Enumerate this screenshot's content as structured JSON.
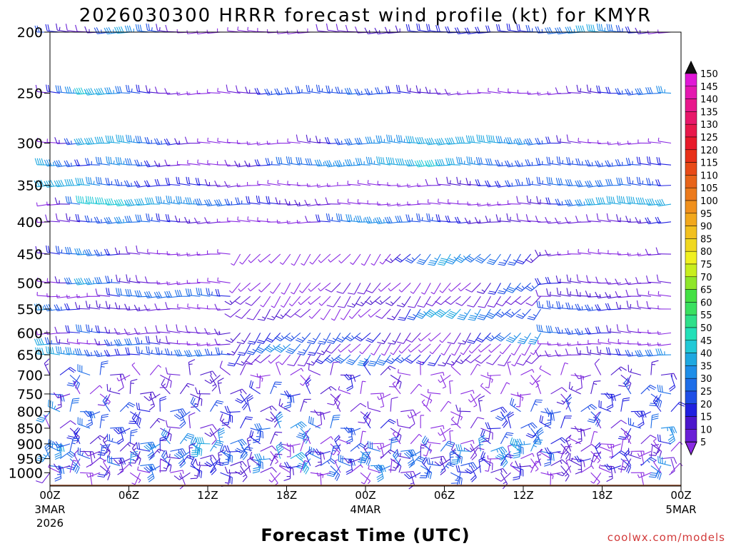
{
  "chart_data": {
    "type": "wind-barb-time-height",
    "title": "2026030300 HRRR forecast wind profile (kt) for KMYR",
    "xlabel": "Forecast Time (UTC)",
    "ylabel": "",
    "credit": "coolwx.com/models",
    "x_range_hours": [
      0,
      48
    ],
    "x_ticks": [
      {
        "hour": 0,
        "label": "00Z",
        "sub1": "3MAR",
        "sub2": "2026"
      },
      {
        "hour": 6,
        "label": "06Z",
        "sub1": "",
        "sub2": ""
      },
      {
        "hour": 12,
        "label": "12Z",
        "sub1": "",
        "sub2": ""
      },
      {
        "hour": 18,
        "label": "18Z",
        "sub1": "",
        "sub2": ""
      },
      {
        "hour": 24,
        "label": "00Z",
        "sub1": "4MAR",
        "sub2": ""
      },
      {
        "hour": 30,
        "label": "06Z",
        "sub1": "",
        "sub2": ""
      },
      {
        "hour": 36,
        "label": "12Z",
        "sub1": "",
        "sub2": ""
      },
      {
        "hour": 42,
        "label": "18Z",
        "sub1": "",
        "sub2": ""
      },
      {
        "hour": 48,
        "label": "00Z",
        "sub1": "5MAR",
        "sub2": ""
      }
    ],
    "y_scale": "log-pressure",
    "y_range_hpa": [
      1050,
      200
    ],
    "y_ticks": [
      "200",
      "250",
      "300",
      "350",
      "400",
      "450",
      "500",
      "550",
      "600",
      "650",
      "700",
      "750",
      "800",
      "850",
      "900",
      "950",
      "1000"
    ],
    "colorbar": {
      "labels": [
        "5",
        "10",
        "15",
        "20",
        "25",
        "30",
        "35",
        "40",
        "45",
        "50",
        "55",
        "60",
        "65",
        "70",
        "75",
        "80",
        "85",
        "90",
        "95",
        "100",
        "105",
        "110",
        "115",
        "120",
        "125",
        "130",
        "135",
        "140",
        "145",
        "150"
      ],
      "colors": [
        "#8a2be2",
        "#6a1fd6",
        "#4c17cc",
        "#2020e0",
        "#1f4fe6",
        "#1e6ee8",
        "#1e8ee8",
        "#1ea8e0",
        "#22c9d6",
        "#22e0b8",
        "#2ee08a",
        "#3ae060",
        "#44e044",
        "#8fe62a",
        "#c8ee1e",
        "#f0f020",
        "#f0d820",
        "#f2c01e",
        "#f2a81c",
        "#f0901c",
        "#ec7a1c",
        "#e8641a",
        "#e84a18",
        "#e83018",
        "#e81a2a",
        "#e8184a",
        "#e8186a",
        "#e8188c",
        "#e418b0",
        "#e018d6"
      ]
    },
    "levels": [
      {
        "p": 200,
        "shape": [
          [
            0,
            23.3
          ],
          [
            3,
            8.3
          ],
          [
            6,
            42.3
          ],
          [
            12,
            -5.4
          ],
          [
            18,
            3.9
          ],
          [
            24,
            11.9
          ],
          [
            30,
            20.0
          ],
          [
            36,
            18.1
          ],
          [
            42,
            41.1
          ],
          [
            48,
            -5.1
          ]
        ]
      },
      {
        "p": 250,
        "shape": [
          [
            0,
            12.4
          ],
          [
            3,
            44.5
          ],
          [
            6,
            31.7
          ],
          [
            12,
            -5.1
          ],
          [
            18,
            25.8
          ],
          [
            24,
            27.9
          ],
          [
            30,
            12.4
          ],
          [
            36,
            -7.5
          ],
          [
            42,
            17.5
          ],
          [
            48,
            35.2
          ]
        ]
      },
      {
        "p": 300,
        "shape": [
          [
            0,
            -7.6
          ],
          [
            3,
            38.3
          ],
          [
            6,
            39.1
          ],
          [
            12,
            7.6
          ],
          [
            18,
            -1.8
          ],
          [
            24,
            31.7
          ],
          [
            30,
            41.7
          ],
          [
            36,
            36.3
          ],
          [
            42,
            -0.1
          ],
          [
            48,
            -4.4
          ]
        ]
      },
      {
        "p": 325,
        "shape": [
          [
            0,
            40.0
          ],
          [
            3,
            19.5
          ],
          [
            6,
            37.5
          ],
          [
            12,
            -5.7
          ],
          [
            18,
            29.0
          ],
          [
            24,
            35.4
          ],
          [
            30,
            44.1
          ],
          [
            36,
            22.2
          ],
          [
            42,
            25.4
          ],
          [
            48,
            20.5
          ]
        ]
      },
      {
        "p": 350,
        "shape": [
          [
            0,
            39.3
          ],
          [
            3,
            37.9
          ],
          [
            6,
            23.7
          ],
          [
            12,
            18.8
          ],
          [
            18,
            -7.5
          ],
          [
            24,
            -8.4
          ],
          [
            30,
            10.1
          ],
          [
            36,
            23.9
          ],
          [
            42,
            31.5
          ],
          [
            48,
            20.6
          ]
        ]
      },
      {
        "p": 375,
        "shape": [
          [
            0,
            -8.7
          ],
          [
            3,
            42.8
          ],
          [
            6,
            42.9
          ],
          [
            12,
            31.8
          ],
          [
            18,
            17.5
          ],
          [
            24,
            5.0
          ],
          [
            30,
            -6.4
          ],
          [
            36,
            4.6
          ],
          [
            42,
            41.0
          ],
          [
            48,
            38.7
          ]
        ]
      },
      {
        "p": 400,
        "shape": [
          [
            0,
            3.9
          ],
          [
            3,
            19.1
          ],
          [
            6,
            33.6
          ],
          [
            12,
            11.8
          ],
          [
            18,
            -6.9
          ],
          [
            24,
            38.0
          ],
          [
            30,
            21.8
          ],
          [
            36,
            12.2
          ],
          [
            42,
            8.6
          ],
          [
            48,
            22.5
          ]
        ]
      },
      {
        "p": 450,
        "shape": [
          [
            0,
            13.9
          ],
          [
            3,
            33.7
          ],
          [
            6,
            13.8
          ],
          [
            12,
            -3.5
          ],
          [
            18,
            2.9
          ],
          [
            24,
            -8.5
          ],
          [
            30,
            38.9
          ],
          [
            36,
            23.5
          ],
          [
            42,
            -3.9
          ],
          [
            48,
            11.7
          ]
        ]
      },
      {
        "p": 500,
        "shape": [
          [
            0,
            -9.0
          ],
          [
            3,
            41.4
          ],
          [
            6,
            17.2
          ],
          [
            12,
            -5.9
          ],
          [
            18,
            -1.5
          ],
          [
            24,
            12.8
          ],
          [
            30,
            -4.3
          ],
          [
            36,
            28.7
          ],
          [
            42,
            9.6
          ],
          [
            48,
            9.2
          ]
        ]
      },
      {
        "p": 525,
        "shape": [
          [
            0,
            -2.2
          ],
          [
            3,
            -6.4
          ],
          [
            6,
            27.8
          ],
          [
            12,
            29.6
          ],
          [
            18,
            -3.0
          ],
          [
            24,
            14.0
          ],
          [
            30,
            11.6
          ],
          [
            36,
            9.7
          ],
          [
            42,
            17.4
          ],
          [
            48,
            2.4
          ]
        ]
      },
      {
        "p": 550,
        "shape": [
          [
            0,
            34.2
          ],
          [
            3,
            13.9
          ],
          [
            6,
            15.8
          ],
          [
            12,
            4.0
          ],
          [
            18,
            16.4
          ],
          [
            24,
            -6.7
          ],
          [
            30,
            42.1
          ],
          [
            36,
            24.0
          ],
          [
            42,
            23.2
          ],
          [
            48,
            2.5
          ]
        ]
      },
      {
        "p": 600,
        "shape": [
          [
            0,
            -6.7
          ],
          [
            3,
            30.8
          ],
          [
            6,
            9.5
          ],
          [
            12,
            10.2
          ],
          [
            18,
            23.5
          ],
          [
            24,
            22.5
          ],
          [
            30,
            2.0
          ],
          [
            36,
            36.6
          ],
          [
            42,
            20.2
          ],
          [
            48,
            -1.1
          ]
        ]
      },
      {
        "p": 625,
        "shape": [
          [
            0,
            37.8
          ],
          [
            3,
            -3.3
          ],
          [
            6,
            33.0
          ],
          [
            12,
            -1.7
          ],
          [
            18,
            38.1
          ],
          [
            24,
            -6.7
          ],
          [
            30,
            -3.2
          ],
          [
            36,
            0.6
          ],
          [
            42,
            -3.0
          ],
          [
            48,
            -6.2
          ]
        ]
      },
      {
        "p": 650,
        "shape": [
          [
            0,
            42.1
          ],
          [
            3,
            29.5
          ],
          [
            6,
            20.1
          ],
          [
            12,
            30.8
          ],
          [
            18,
            2.6
          ],
          [
            24,
            33.7
          ],
          [
            30,
            16.9
          ],
          [
            36,
            7.0
          ],
          [
            42,
            14.0
          ],
          [
            48,
            37.2
          ]
        ]
      },
      {
        "p": 700,
        "shape": [
          [
            0,
            16.4
          ],
          [
            3,
            30.2
          ],
          [
            6,
            2.1
          ],
          [
            12,
            17.2
          ],
          [
            18,
            -1.2
          ],
          [
            24,
            22.6
          ],
          [
            30,
            -5.9
          ],
          [
            36,
            -2.1
          ],
          [
            42,
            12.0
          ],
          [
            48,
            18.7
          ]
        ]
      },
      {
        "p": 750,
        "shape": [
          [
            0,
            23.0
          ],
          [
            3,
            -1.3
          ],
          [
            6,
            17.1
          ],
          [
            12,
            12.6
          ],
          [
            18,
            25.8
          ],
          [
            24,
            0.9
          ],
          [
            30,
            -7.8
          ],
          [
            36,
            3.9
          ],
          [
            42,
            19.7
          ],
          [
            48,
            29.5
          ]
        ]
      },
      {
        "p": 800,
        "shape": [
          [
            0,
            36.8
          ],
          [
            3,
            26.8
          ],
          [
            6,
            21.4
          ],
          [
            12,
            23.6
          ],
          [
            18,
            13.6
          ],
          [
            24,
            10.1
          ],
          [
            30,
            5.6
          ],
          [
            36,
            26.3
          ],
          [
            42,
            22.5
          ],
          [
            48,
            20.6
          ]
        ]
      },
      {
        "p": 850,
        "shape": [
          [
            0,
            4.0
          ],
          [
            3,
            28.1
          ],
          [
            6,
            20.3
          ],
          [
            12,
            8.2
          ],
          [
            18,
            36.9
          ],
          [
            24,
            22.0
          ],
          [
            30,
            0.5
          ],
          [
            36,
            26.0
          ],
          [
            42,
            8.9
          ],
          [
            48,
            41.1
          ]
        ]
      },
      {
        "p": 900,
        "shape": [
          [
            0,
            39.3
          ],
          [
            3,
            13.6
          ],
          [
            6,
            26.6
          ],
          [
            12,
            42.2
          ],
          [
            18,
            7.3
          ],
          [
            24,
            -7.5
          ],
          [
            30,
            -0.7
          ],
          [
            36,
            37.4
          ],
          [
            42,
            -5.9
          ],
          [
            48,
            24.4
          ]
        ]
      },
      {
        "p": 925,
        "shape": [
          [
            0,
            36.2
          ],
          [
            3,
            10.8
          ],
          [
            6,
            14.6
          ],
          [
            12,
            34.5
          ],
          [
            18,
            -0.7
          ],
          [
            24,
            32.3
          ],
          [
            30,
            31.5
          ],
          [
            36,
            38.1
          ],
          [
            42,
            -1.3
          ],
          [
            48,
            -4.2
          ]
        ]
      },
      {
        "p": 950,
        "shape": [
          [
            0,
            29.9
          ],
          [
            3,
            26.2
          ],
          [
            6,
            12.7
          ],
          [
            12,
            16.9
          ],
          [
            18,
            42.5
          ],
          [
            24,
            15.2
          ],
          [
            30,
            17.3
          ],
          [
            36,
            -3.4
          ],
          [
            42,
            21.1
          ],
          [
            48,
            7.0
          ]
        ]
      },
      {
        "p": 975,
        "shape": [
          [
            0,
            27.6
          ],
          [
            3,
            7.6
          ],
          [
            6,
            33.3
          ],
          [
            12,
            14.8
          ],
          [
            18,
            14.2
          ],
          [
            24,
            35.3
          ],
          [
            30,
            24.6
          ],
          [
            36,
            17.3
          ],
          [
            42,
            13.3
          ],
          [
            48,
            37.3
          ]
        ]
      },
      {
        "p": 1000,
        "shape": [
          [
            0,
            8.6
          ],
          [
            3,
            -6.6
          ],
          [
            6,
            -8.8
          ],
          [
            12,
            21.5
          ],
          [
            18,
            1.5
          ],
          [
            24,
            -7.2
          ],
          [
            30,
            28.4
          ],
          [
            36,
            6.2
          ],
          [
            42,
            -3.7
          ],
          [
            48,
            2.6
          ]
        ]
      }
    ],
    "terrain": {
      "color": "#8b4a2a"
    }
  }
}
